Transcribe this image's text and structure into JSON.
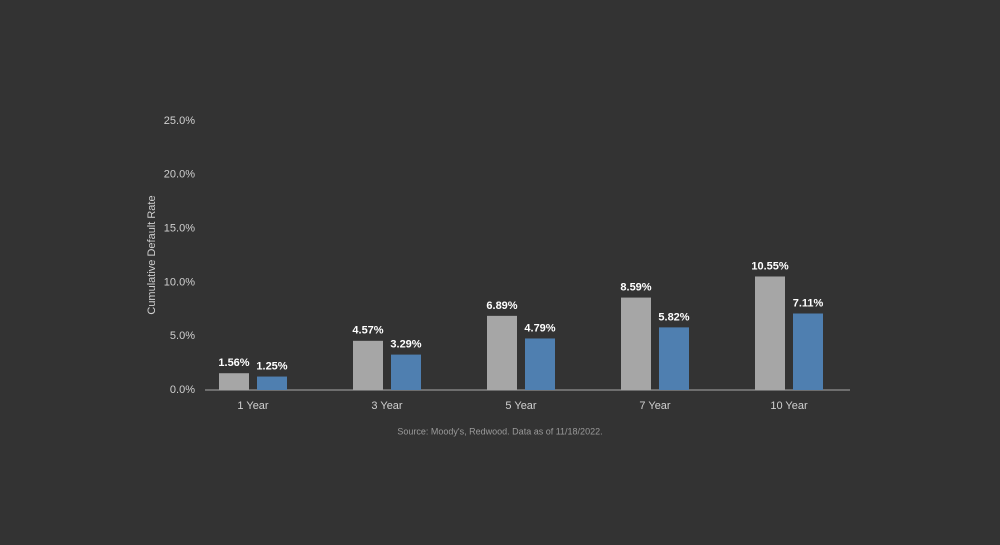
{
  "chart_data": {
    "type": "bar",
    "y_label": "Cumulative Default Rate",
    "source": "Source: Moody's, Redwood. Data as of 11/18/2022.",
    "categories": [
      "1 Year",
      "3 Year",
      "5 Year",
      "7 Year",
      "10 Year"
    ],
    "series": [
      {
        "color": "#a6a6a6",
        "values": [
          1.56,
          4.57,
          6.89,
          8.59,
          10.55
        ],
        "value_labels": [
          "1.56%",
          "4.57%",
          "6.89%",
          "8.59%",
          "10.55%"
        ]
      },
      {
        "color": "#4f7fb0",
        "values": [
          1.25,
          3.29,
          4.79,
          5.82,
          7.11
        ],
        "value_labels": [
          "1.25%",
          "3.29%",
          "4.79%",
          "5.82%",
          "7.11%"
        ]
      }
    ],
    "ylim": [
      0,
      25
    ],
    "yticks": [
      {
        "value": 0,
        "label": "0.0%"
      },
      {
        "value": 5,
        "label": "5.0%"
      },
      {
        "value": 10,
        "label": "10.0%"
      },
      {
        "value": 15,
        "label": "15.0%"
      },
      {
        "value": 20,
        "label": "20.0%"
      },
      {
        "value": 25,
        "label": "25.0%"
      }
    ],
    "grid": false
  }
}
